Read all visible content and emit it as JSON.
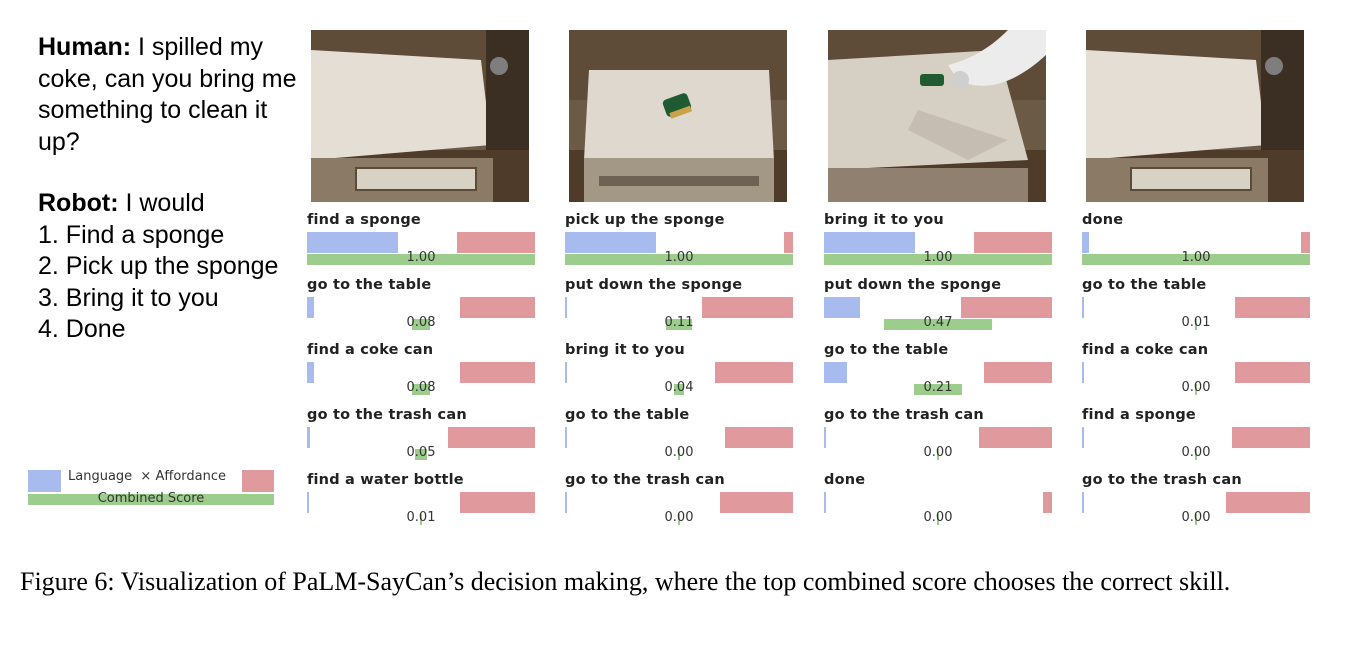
{
  "dialog": {
    "human_label": "Human:",
    "human_text": " I spilled my coke, can you bring me something to clean it up?",
    "robot_label": "Robot:",
    "robot_text": " I would",
    "steps": [
      "1. Find a sponge",
      "2. Pick up the sponge",
      "3. Bring it to you",
      "4. Done"
    ]
  },
  "legend": {
    "language": "Language",
    "times": "×",
    "affordance": "Affordance",
    "combined": "Combined Score"
  },
  "colors": {
    "language": "#a8bbee",
    "affordance": "#e0999c",
    "combined": "#9ccd8d"
  },
  "columns": [
    {
      "image": "robot-scene-counter",
      "entries": [
        {
          "label": "find a sponge",
          "language": 0.4,
          "affordance": 0.34,
          "score": "1.00"
        },
        {
          "label": "go to the table",
          "language": 0.03,
          "affordance": 0.33,
          "score": "0.08"
        },
        {
          "label": "find a coke can",
          "language": 0.03,
          "affordance": 0.33,
          "score": "0.08"
        },
        {
          "label": "go to the trash can",
          "language": 0.015,
          "affordance": 0.38,
          "score": "0.05"
        },
        {
          "label": "find a water bottle",
          "language": 0.005,
          "affordance": 0.33,
          "score": "0.01"
        }
      ]
    },
    {
      "image": "robot-scene-sponge-on-table",
      "entries": [
        {
          "label": "pick up the sponge",
          "language": 0.4,
          "affordance": 0.04,
          "score": "1.00"
        },
        {
          "label": "put down the sponge",
          "language": 0.005,
          "affordance": 0.4,
          "score": "0.11"
        },
        {
          "label": "bring it to you",
          "language": 0.005,
          "affordance": 0.34,
          "score": "0.04"
        },
        {
          "label": "go to the table",
          "language": 0.005,
          "affordance": 0.3,
          "score": "0.00"
        },
        {
          "label": "go to the trash can",
          "language": 0.005,
          "affordance": 0.32,
          "score": "0.00"
        }
      ]
    },
    {
      "image": "robot-scene-arm-holding-sponge",
      "entries": [
        {
          "label": "bring it to you",
          "language": 0.4,
          "affordance": 0.34,
          "score": "1.00"
        },
        {
          "label": "put down the sponge",
          "language": 0.16,
          "affordance": 0.4,
          "score": "0.47"
        },
        {
          "label": "go to the table",
          "language": 0.1,
          "affordance": 0.3,
          "score": "0.21"
        },
        {
          "label": "go to the trash can",
          "language": 0.005,
          "affordance": 0.32,
          "score": "0.00"
        },
        {
          "label": "done",
          "language": 0.005,
          "affordance": 0.04,
          "score": "0.00"
        }
      ]
    },
    {
      "image": "robot-scene-counter-done",
      "entries": [
        {
          "label": "done",
          "language": 0.03,
          "affordance": 0.04,
          "score": "1.00"
        },
        {
          "label": "go to the table",
          "language": 0.005,
          "affordance": 0.33,
          "score": "0.01"
        },
        {
          "label": "find a coke can",
          "language": 0.005,
          "affordance": 0.33,
          "score": "0.00"
        },
        {
          "label": "find a sponge",
          "language": 0.005,
          "affordance": 0.34,
          "score": "0.00"
        },
        {
          "label": "go to the trash can",
          "language": 0.005,
          "affordance": 0.37,
          "score": "0.00"
        }
      ]
    }
  ],
  "caption": "Figure 6: Visualization of PaLM-SayCan’s decision making, where the top combined score chooses the correct skill."
}
